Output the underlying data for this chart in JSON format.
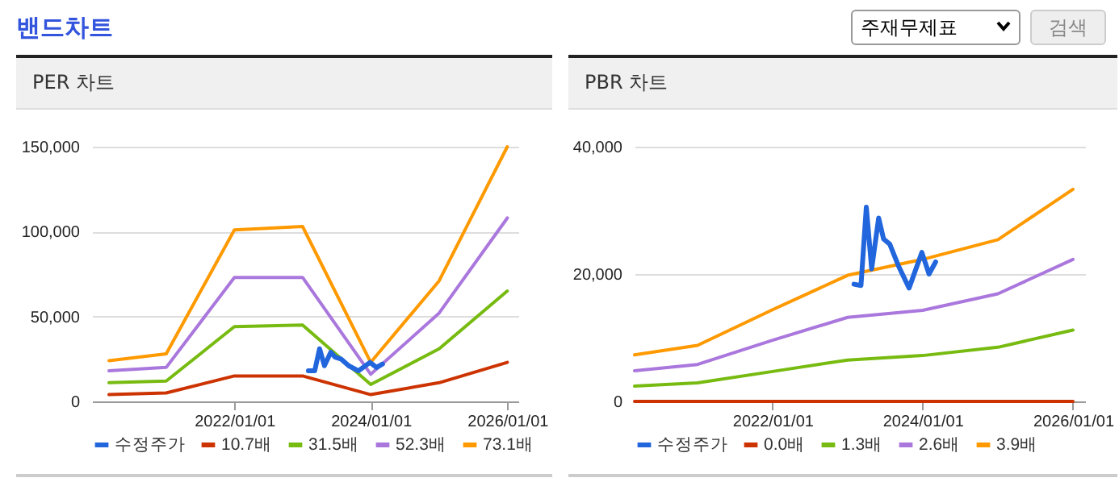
{
  "chart_data": [
    {
      "type": "other",
      "title": "밴드차트",
      "annotations": [
        "주재무제표",
        "검색"
      ]
    },
    {
      "type": "line",
      "title": "PER 차트",
      "legend": "bottom",
      "grid": "y",
      "xlim": [
        "2019-12",
        "2026-03"
      ],
      "xticks": [
        {
          "value": "2022-01-01",
          "label": "2022/01/01"
        },
        {
          "value": "2024-01-01",
          "label": "2024/01/01"
        },
        {
          "value": "2026-01-01",
          "label": "2026/01/01"
        }
      ],
      "ylim": [
        0,
        150000
      ],
      "yticks": [
        0,
        {
          "value": 50000,
          "label": "50,000"
        },
        {
          "value": 100000,
          "label": "100,000"
        },
        {
          "value": 150000,
          "label": "150,000"
        }
      ],
      "series": [
        {
          "name": "수정주가",
          "color": "#2266dd",
          "x": [
            "2023-02-01",
            "2023-03-07",
            "2023-04-02",
            "2023-04-28",
            "2023-06-01",
            "2023-06-25",
            "2023-07-25",
            "2023-09-05",
            "2023-10-27",
            "2023-12-28",
            "2024-02-01",
            "2024-03-04"
          ],
          "values": [
            18000,
            18000,
            31000,
            21000,
            29000,
            26000,
            25000,
            21000,
            18000,
            23000,
            20000,
            22000
          ]
        },
        {
          "name": "10.7배",
          "color": "#cc3300",
          "x": [
            "2020-03",
            "2021-01",
            "2022-01",
            "2023-01",
            "2024-01",
            "2025-01",
            "2026-01"
          ],
          "values": [
            4000,
            5000,
            15000,
            15000,
            4000,
            11000,
            23000
          ]
        },
        {
          "name": "31.5배",
          "color": "#77bb11",
          "x": [
            "2020-03",
            "2021-01",
            "2022-01",
            "2023-01",
            "2024-01",
            "2025-01",
            "2026-01"
          ],
          "values": [
            11000,
            12000,
            44000,
            45000,
            10000,
            31000,
            65000
          ]
        },
        {
          "name": "52.3배",
          "color": "#aa77dd",
          "x": [
            "2020-03",
            "2021-01",
            "2022-01",
            "2023-01",
            "2024-01",
            "2025-01",
            "2026-01"
          ],
          "values": [
            18000,
            20000,
            73000,
            73000,
            16000,
            52000,
            108000
          ]
        },
        {
          "name": "73.1배",
          "color": "#ff9900",
          "x": [
            "2020-03",
            "2021-01",
            "2022-01",
            "2023-01",
            "2024-01",
            "2025-01",
            "2026-01"
          ],
          "values": [
            24000,
            28000,
            101000,
            103000,
            23000,
            71000,
            150000
          ]
        }
      ]
    },
    {
      "type": "line",
      "title": "PBR 차트",
      "legend": "bottom",
      "grid": "y",
      "xlim": [
        "2020-03",
        "2026-03"
      ],
      "xticks": [
        {
          "value": "2022-01-01",
          "label": "2022/01/01"
        },
        {
          "value": "2024-01-01",
          "label": "2024/01/01"
        },
        {
          "value": "2026-01-01",
          "label": "2026/01/01"
        }
      ],
      "ylim": [
        0,
        40000
      ],
      "yticks": [
        0,
        {
          "value": 20000,
          "label": "20,000"
        },
        {
          "value": 40000,
          "label": "40,000"
        }
      ],
      "series": [
        {
          "name": "수정주가",
          "color": "#2266dd",
          "x": [
            "2023-02-01",
            "2023-03-07",
            "2023-04-02",
            "2023-04-28",
            "2023-06-01",
            "2023-06-25",
            "2023-07-25",
            "2023-09-05",
            "2023-10-27",
            "2023-12-28",
            "2024-02-01",
            "2024-03-04"
          ],
          "values": [
            18400,
            18200,
            30500,
            20800,
            28800,
            25500,
            24700,
            21300,
            17800,
            23400,
            20000,
            21900
          ]
        },
        {
          "name": "0.0배",
          "color": "#cc3300",
          "x": [
            "2020-03",
            "2021-01",
            "2022-01",
            "2023-01",
            "2024-01",
            "2025-01",
            "2026-01"
          ],
          "values": [
            0,
            0,
            0,
            0,
            0,
            0,
            0
          ]
        },
        {
          "name": "1.3배",
          "color": "#77bb11",
          "x": [
            "2020-03",
            "2021-01",
            "2022-01",
            "2023-01",
            "2024-01",
            "2025-01",
            "2026-01"
          ],
          "values": [
            2400,
            2900,
            4700,
            6500,
            7200,
            8500,
            11200
          ]
        },
        {
          "name": "2.6배",
          "color": "#aa77dd",
          "x": [
            "2020-03",
            "2021-01",
            "2022-01",
            "2023-01",
            "2024-01",
            "2025-01",
            "2026-01"
          ],
          "values": [
            4800,
            5800,
            9600,
            13200,
            14300,
            16900,
            22300
          ]
        },
        {
          "name": "3.9배",
          "color": "#ff9900",
          "x": [
            "2020-03",
            "2021-01",
            "2022-01",
            "2023-01",
            "2024-01",
            "2025-01",
            "2026-01"
          ],
          "values": [
            7300,
            8800,
            14400,
            19800,
            22300,
            25400,
            33300
          ]
        }
      ]
    }
  ]
}
